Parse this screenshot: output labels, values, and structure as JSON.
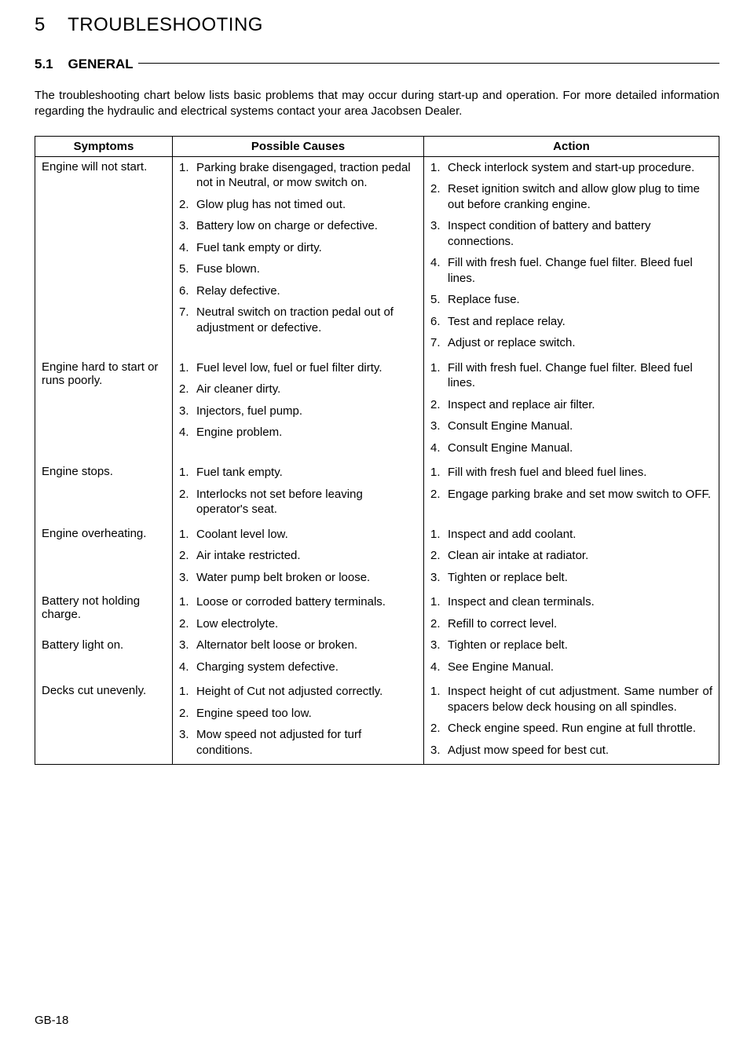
{
  "chapter_number": "5",
  "chapter_title": "TROUBLESHOOTING",
  "section_number": "5.1",
  "section_title": "GENERAL",
  "intro": "The troubleshooting chart below lists basic problems that may occur during start-up and operation. For more detailed information regarding the hydraulic and electrical systems contact your area Jacobsen Dealer.",
  "headers": {
    "symptoms": "Symptoms",
    "causes": "Possible Causes",
    "action": "Action"
  },
  "rows": [
    {
      "symptom": "Engine will not start.",
      "causes": [
        "Parking brake disengaged, traction pedal not in Neutral, or mow switch on.",
        "Glow plug has not timed out.",
        "Battery low on charge or defective.",
        "Fuel tank empty or dirty.",
        "Fuse blown.",
        "Relay defective.",
        "Neutral switch on traction pedal out of adjustment or defective."
      ],
      "actions": [
        "Check interlock system and start-up procedure.",
        "Reset ignition switch and allow glow plug to time out before cranking engine.",
        "Inspect condition of battery and battery connections.",
        "Fill with fresh fuel. Change fuel filter. Bleed fuel lines.",
        "Replace fuse.",
        "Test and replace relay.",
        "Adjust or replace switch."
      ]
    },
    {
      "symptom": "Engine hard to start or runs poorly.",
      "causes": [
        "Fuel level low, fuel or fuel filter dirty.",
        "Air cleaner dirty.",
        "Injectors, fuel pump.",
        "Engine problem."
      ],
      "actions": [
        "Fill with fresh fuel. Change fuel filter. Bleed fuel lines.",
        "Inspect and replace air filter.",
        "Consult Engine Manual.",
        "Consult Engine Manual."
      ]
    },
    {
      "symptom": "Engine stops.",
      "causes": [
        "Fuel tank empty.",
        "Interlocks not set before leaving operator's seat."
      ],
      "actions": [
        "Fill with fresh fuel and bleed fuel lines.",
        "Engage parking brake and set mow switch to OFF."
      ]
    },
    {
      "symptom": "Engine overheating.",
      "causes": [
        "Coolant level low.",
        "Air intake restricted.",
        "Water pump belt broken or loose."
      ],
      "actions": [
        "Inspect and add coolant.",
        "Clean air intake at radiator.",
        "Tighten or replace belt."
      ]
    },
    {
      "symptom": "Battery not holding charge.\nBattery light on.",
      "causes": [
        "Loose or corroded battery terminals.",
        "Low electrolyte.",
        "Alternator belt loose or broken.",
        "Charging system defective."
      ],
      "actions": [
        "Inspect and clean terminals.",
        "Refill to correct level.",
        "Tighten or replace belt.",
        "See Engine Manual."
      ]
    },
    {
      "symptom": "Decks cut unevenly.",
      "causes": [
        "Height of Cut not adjusted correctly.",
        "Engine speed too low.",
        "Mow speed not adjusted for turf conditions."
      ],
      "actions": [
        "Inspect height of cut adjustment. Same number of spacers below deck housing on all spindles.",
        "Check engine speed. Run engine at full throttle.",
        "Adjust mow speed for best cut."
      ],
      "justify_actions": true
    }
  ],
  "page_footer": "GB-18"
}
